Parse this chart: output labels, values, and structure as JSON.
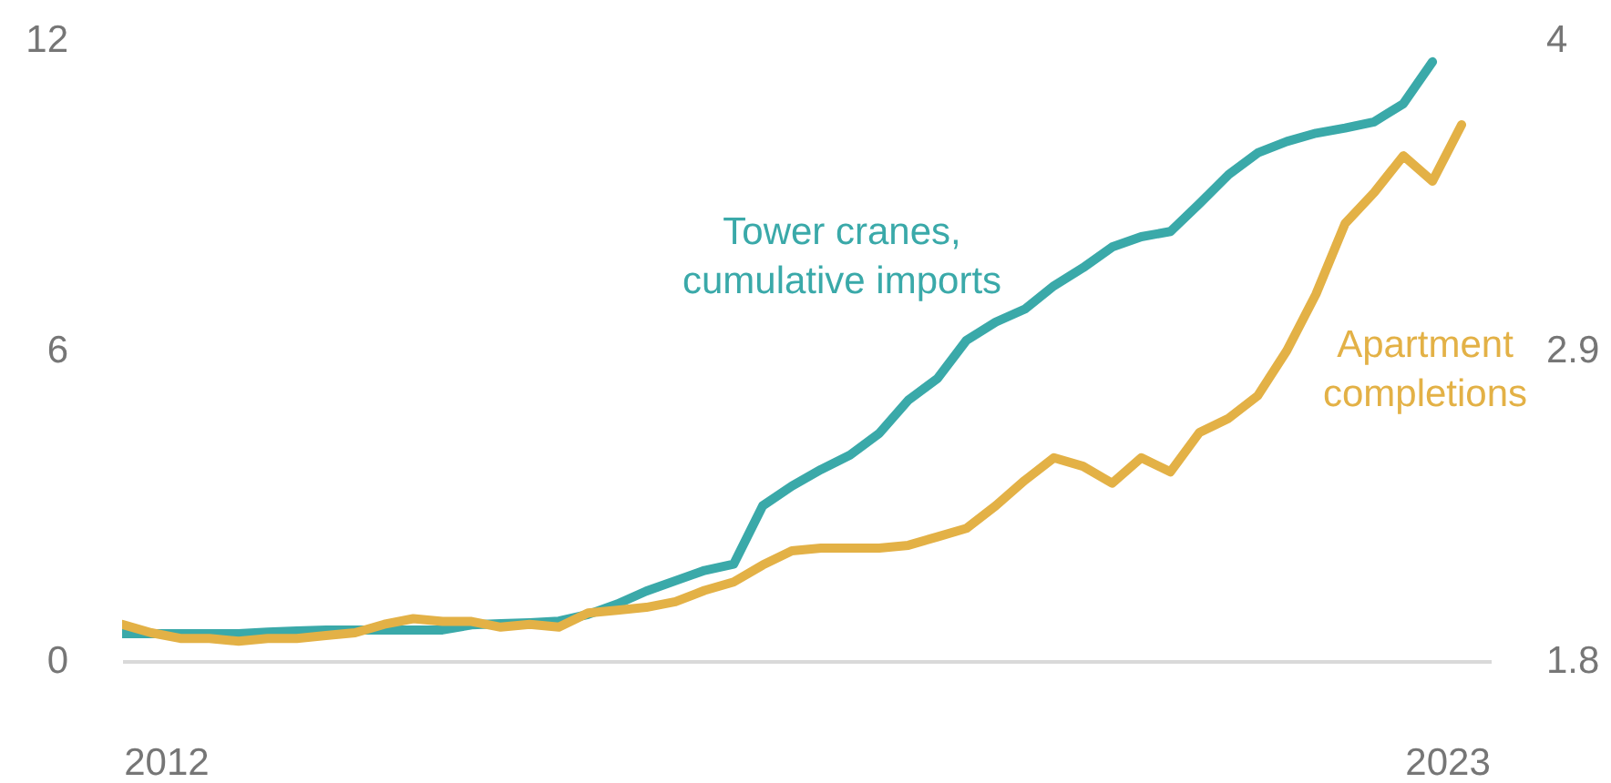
{
  "chart_data": {
    "type": "line",
    "x": [
      2011.625,
      2011.875,
      2012.125,
      2012.375,
      2012.625,
      2012.875,
      2013.125,
      2013.375,
      2013.625,
      2013.875,
      2014.125,
      2014.375,
      2014.625,
      2014.875,
      2015.125,
      2015.375,
      2015.625,
      2015.875,
      2016.125,
      2016.375,
      2016.625,
      2016.875,
      2017.125,
      2017.375,
      2017.625,
      2017.875,
      2018.125,
      2018.375,
      2018.625,
      2018.875,
      2019.125,
      2019.375,
      2019.625,
      2019.875,
      2020.125,
      2020.375,
      2020.625,
      2020.875,
      2021.125,
      2021.375,
      2021.625,
      2021.875,
      2022.125,
      2022.375,
      2022.625,
      2022.875,
      2023.125
    ],
    "series": [
      {
        "name": "Tower cranes, cumulative imports",
        "color": "#3aa9a9",
        "values": [
          0.53,
          0.53,
          0.53,
          0.53,
          0.53,
          0.56,
          0.58,
          0.6,
          0.6,
          0.6,
          0.6,
          0.6,
          0.7,
          0.72,
          0.74,
          0.77,
          0.9,
          1.1,
          1.35,
          1.55,
          1.75,
          1.87,
          3.0,
          3.38,
          3.7,
          3.98,
          4.4,
          5.04,
          5.46,
          6.2,
          6.55,
          6.8,
          7.25,
          7.6,
          8.0,
          8.2,
          8.3,
          8.84,
          9.4,
          9.82,
          10.04,
          10.2,
          10.3,
          10.42,
          10.77,
          11.58,
          null
        ]
      },
      {
        "name": "Apartment completions",
        "color": "#e3b146",
        "axis": "y2",
        "values": [
          1.93,
          1.9,
          1.88,
          1.88,
          1.87,
          1.88,
          1.88,
          1.89,
          1.9,
          1.93,
          1.95,
          1.94,
          1.94,
          1.92,
          1.93,
          1.92,
          1.97,
          1.98,
          1.99,
          2.01,
          2.05,
          2.08,
          2.14,
          2.19,
          2.2,
          2.2,
          2.2,
          2.21,
          2.24,
          2.27,
          2.35,
          2.44,
          2.52,
          2.49,
          2.43,
          2.52,
          2.47,
          2.61,
          2.66,
          2.74,
          2.9,
          3.1,
          3.35,
          3.46,
          3.59,
          3.5,
          3.7
        ]
      }
    ],
    "xlim": [
      2011.625,
      2023.375
    ],
    "xticks": [
      2012,
      2023
    ],
    "ylim": [
      0,
      12
    ],
    "yticks": [
      0,
      6,
      12
    ],
    "y2lim": [
      1.8,
      4
    ],
    "y2ticks": [
      1.8,
      2.9,
      4
    ],
    "legend": false
  }
}
